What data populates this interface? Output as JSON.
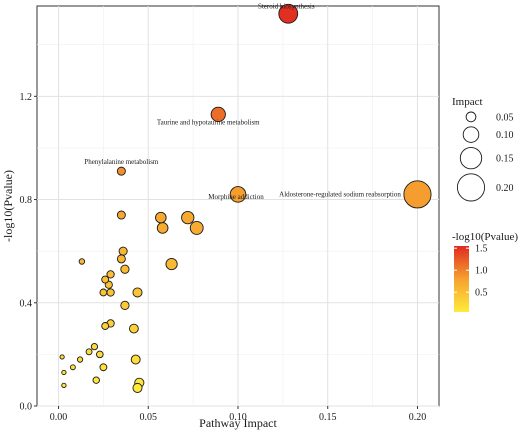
{
  "chart_data": {
    "type": "scatter",
    "xlabel": "Pathway Impact",
    "ylabel": "-log10(Pvalue)",
    "xlim": [
      -0.012,
      0.212
    ],
    "ylim": [
      0.0,
      1.55
    ],
    "x_ticks": [
      0.0,
      0.05,
      0.1,
      0.15,
      0.2
    ],
    "x_tick_labels": [
      "0.00",
      "0.05",
      "0.10",
      "0.15",
      "0.20"
    ],
    "y_ticks": [
      0.0,
      0.4,
      0.8,
      1.2
    ],
    "y_tick_labels": [
      "0.0",
      "0.4",
      "0.8",
      "1.2"
    ],
    "grid": true,
    "size_legend": {
      "title": "Impact",
      "values": [
        0.05,
        0.1,
        0.15,
        0.2
      ],
      "labels": [
        "0.05",
        "0.10",
        "0.15",
        "0.20"
      ]
    },
    "color_legend": {
      "title": "-log10(Pvalue)",
      "ticks": [
        1.5,
        1.0,
        0.5
      ],
      "labels": [
        "1.5",
        "1.0",
        "0.5"
      ],
      "range": [
        0.05,
        1.55
      ],
      "colors": [
        "#ffeb3b",
        "#f6a12f",
        "#e02a20"
      ]
    },
    "points": [
      {
        "x": 0.128,
        "y": 1.52,
        "impact": 0.128,
        "label": "Steroid biosynthesis"
      },
      {
        "x": 0.089,
        "y": 1.13,
        "impact": 0.089,
        "label": "Taurine and hypotaurine metabolism"
      },
      {
        "x": 0.035,
        "y": 0.91,
        "impact": 0.035,
        "label": "Phenylalanine metabolism"
      },
      {
        "x": 0.1,
        "y": 0.82,
        "impact": 0.1,
        "label": "Morphine addiction"
      },
      {
        "x": 0.2,
        "y": 0.82,
        "impact": 0.2,
        "label": "Aldosterone-regulated sodium reabsorption"
      },
      {
        "x": 0.035,
        "y": 0.74,
        "impact": 0.035,
        "label": ""
      },
      {
        "x": 0.057,
        "y": 0.73,
        "impact": 0.057,
        "label": ""
      },
      {
        "x": 0.072,
        "y": 0.73,
        "impact": 0.072,
        "label": ""
      },
      {
        "x": 0.077,
        "y": 0.69,
        "impact": 0.077,
        "label": ""
      },
      {
        "x": 0.058,
        "y": 0.69,
        "impact": 0.058,
        "label": ""
      },
      {
        "x": 0.063,
        "y": 0.55,
        "impact": 0.063,
        "label": ""
      },
      {
        "x": 0.036,
        "y": 0.6,
        "impact": 0.036,
        "label": ""
      },
      {
        "x": 0.035,
        "y": 0.57,
        "impact": 0.035,
        "label": ""
      },
      {
        "x": 0.013,
        "y": 0.56,
        "impact": 0.013,
        "label": ""
      },
      {
        "x": 0.037,
        "y": 0.53,
        "impact": 0.037,
        "label": ""
      },
      {
        "x": 0.029,
        "y": 0.51,
        "impact": 0.029,
        "label": ""
      },
      {
        "x": 0.026,
        "y": 0.49,
        "impact": 0.026,
        "label": ""
      },
      {
        "x": 0.028,
        "y": 0.47,
        "impact": 0.028,
        "label": ""
      },
      {
        "x": 0.025,
        "y": 0.44,
        "impact": 0.025,
        "label": ""
      },
      {
        "x": 0.029,
        "y": 0.44,
        "impact": 0.029,
        "label": ""
      },
      {
        "x": 0.044,
        "y": 0.44,
        "impact": 0.044,
        "label": ""
      },
      {
        "x": 0.037,
        "y": 0.39,
        "impact": 0.037,
        "label": ""
      },
      {
        "x": 0.029,
        "y": 0.32,
        "impact": 0.029,
        "label": ""
      },
      {
        "x": 0.026,
        "y": 0.31,
        "impact": 0.026,
        "label": ""
      },
      {
        "x": 0.042,
        "y": 0.3,
        "impact": 0.042,
        "label": ""
      },
      {
        "x": 0.02,
        "y": 0.23,
        "impact": 0.02,
        "label": ""
      },
      {
        "x": 0.017,
        "y": 0.21,
        "impact": 0.017,
        "label": ""
      },
      {
        "x": 0.023,
        "y": 0.2,
        "impact": 0.023,
        "label": ""
      },
      {
        "x": 0.012,
        "y": 0.18,
        "impact": 0.012,
        "label": ""
      },
      {
        "x": 0.043,
        "y": 0.18,
        "impact": 0.043,
        "label": ""
      },
      {
        "x": 0.002,
        "y": 0.19,
        "impact": 0.002,
        "label": ""
      },
      {
        "x": 0.008,
        "y": 0.15,
        "impact": 0.008,
        "label": ""
      },
      {
        "x": 0.025,
        "y": 0.15,
        "impact": 0.025,
        "label": ""
      },
      {
        "x": 0.003,
        "y": 0.13,
        "impact": 0.003,
        "label": ""
      },
      {
        "x": 0.021,
        "y": 0.1,
        "impact": 0.021,
        "label": ""
      },
      {
        "x": 0.045,
        "y": 0.09,
        "impact": 0.045,
        "label": ""
      },
      {
        "x": 0.044,
        "y": 0.07,
        "impact": 0.044,
        "label": ""
      },
      {
        "x": 0.003,
        "y": 0.08,
        "impact": 0.003,
        "label": ""
      }
    ]
  }
}
